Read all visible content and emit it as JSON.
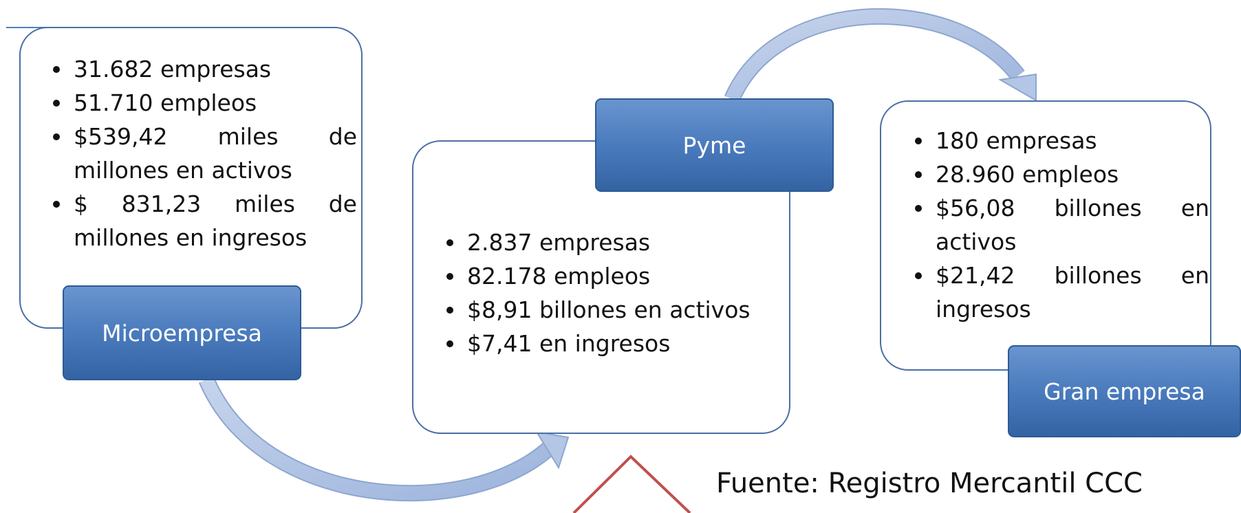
{
  "nodes": [
    {
      "label": "Microempresa",
      "items": [
        "31.682 empresas",
        "51.710 empleos",
        "$539,42 miles de millones en activos",
        "$ 831,23 miles de millones en ingresos"
      ]
    },
    {
      "label": "Pyme",
      "items": [
        "2.837 empresas",
        "82.178 empleos",
        "$8,91 billones en activos",
        "$7,41 en ingresos"
      ]
    },
    {
      "label": "Gran empresa",
      "items": [
        "180 empresas",
        "28.960 empleos",
        "$56,08 billones en activos",
        "$21,42 billones en ingresos"
      ]
    }
  ],
  "source": "Fuente: Registro Mercantil CCC"
}
